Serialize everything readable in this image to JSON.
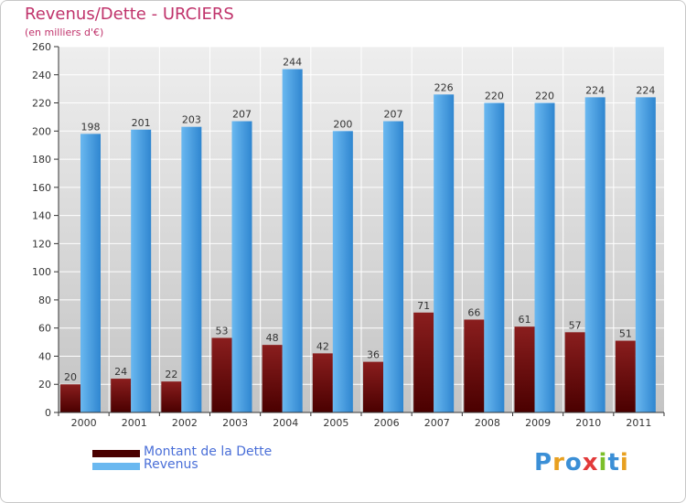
{
  "colors": {
    "title": "#c0336b",
    "dette_top": "#8a1e1e",
    "dette_bottom": "#4a0000",
    "revenus_top": "#6ab8f0",
    "revenus_bottom": "#2f86d0",
    "legend_text": "#4a6fd8",
    "grid": "#ffffff",
    "plot_bg_top": "#eeeeee",
    "plot_bg_bottom": "#c4c4c4"
  },
  "chart_data": {
    "type": "bar",
    "title": "Revenus/Dette - URCIERS",
    "subtitle": "(en milliers d'€)",
    "xlabel": "",
    "ylabel": "",
    "ylim": [
      0,
      260
    ],
    "yticks": [
      0,
      20,
      40,
      60,
      80,
      100,
      120,
      140,
      160,
      180,
      200,
      220,
      240,
      260
    ],
    "grid": true,
    "legend_position": "bottom-left",
    "categories": [
      "2000",
      "2001",
      "2002",
      "2003",
      "2004",
      "2005",
      "2006",
      "2007",
      "2008",
      "2009",
      "2010",
      "2011"
    ],
    "series": [
      {
        "name": "Montant de la Dette",
        "values": [
          20,
          24,
          22,
          53,
          48,
          42,
          36,
          71,
          66,
          61,
          57,
          51
        ]
      },
      {
        "name": "Revenus",
        "values": [
          198,
          201,
          203,
          207,
          244,
          200,
          207,
          226,
          220,
          220,
          224,
          224
        ]
      }
    ]
  },
  "legend": {
    "items": [
      {
        "label": "Montant de la Dette"
      },
      {
        "label": "Revenus"
      }
    ]
  },
  "brand": {
    "letters": [
      {
        "ch": "P",
        "color": "#3b8fd6"
      },
      {
        "ch": "r",
        "color": "#e8a020"
      },
      {
        "ch": "o",
        "color": "#3b8fd6"
      },
      {
        "ch": "x",
        "color": "#e23a3a"
      },
      {
        "ch": "i",
        "color": "#7cbf2a"
      },
      {
        "ch": "t",
        "color": "#3b8fd6"
      },
      {
        "ch": "i",
        "color": "#e8a020"
      }
    ]
  }
}
